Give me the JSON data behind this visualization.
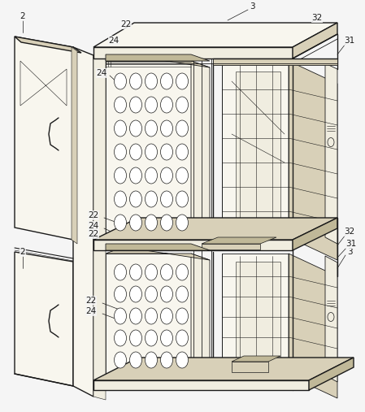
{
  "bg": "#f5f5f5",
  "lc": "#1a1a1a",
  "lc2": "#333333",
  "fc_white": "#ffffff",
  "fc_light": "#f0ede0",
  "fc_mid": "#d8d0b8",
  "fc_dark": "#c0b898",
  "fc_vlight": "#f8f6ee",
  "lw": 0.6,
  "lwt": 1.0,
  "lws": 0.4,
  "dpi": 100,
  "figw": 4.49,
  "figh": 5.07
}
